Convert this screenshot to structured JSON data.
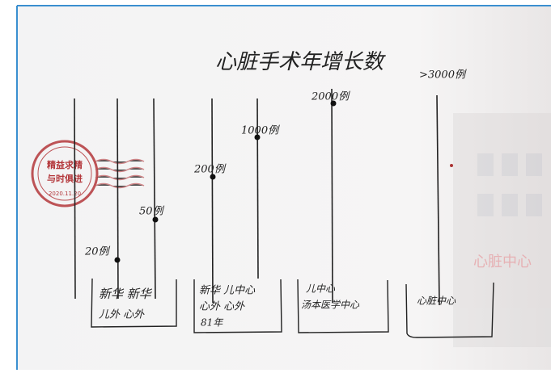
{
  "title": "心脏手术年增长数",
  "annotations": [
    "20例",
    "50例",
    "200例",
    "1000例",
    "2000例",
    ">3000例"
  ],
  "boxes": [
    {
      "lines": [
        "新华 新华",
        "儿外 心外"
      ]
    },
    {
      "lines": [
        "新华 儿中心",
        "心外 心外",
        "81年"
      ]
    },
    {
      "lines": [
        "儿中心",
        "汤本医学中心"
      ]
    },
    {
      "lines": [
        "心脏中心"
      ]
    }
  ],
  "stamp": {
    "lines": [
      "精益求精",
      "与时俱进",
      "2020.11.20"
    ]
  },
  "sign": "心脏中心"
}
